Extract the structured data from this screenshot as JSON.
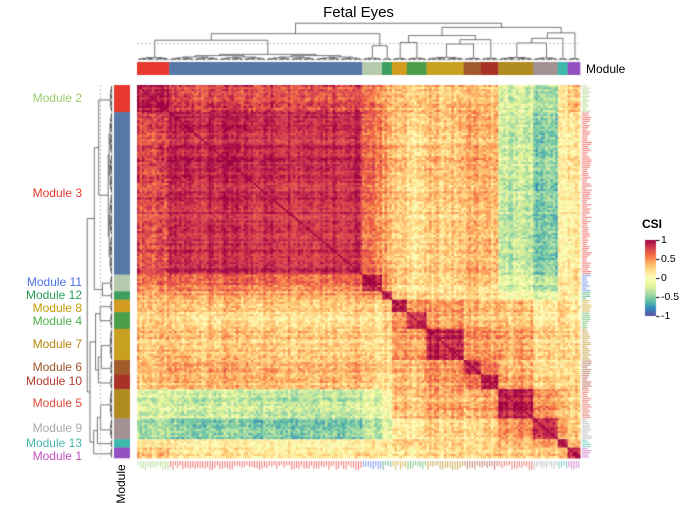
{
  "title": "Fetal Eyes",
  "annotation_label": "Module",
  "legend": {
    "title": "CSI",
    "ticks": [
      "1",
      "0.5",
      "0",
      "-0.5",
      "-1"
    ],
    "tick_values": [
      1,
      0.5,
      0,
      -0.5,
      -1
    ],
    "range": [
      1,
      -1
    ]
  },
  "chart_data": {
    "type": "heatmap",
    "title": "Fetal Eyes",
    "value_label": "CSI",
    "value_range": [
      -1,
      1
    ],
    "rows_equal_columns": true,
    "legend_position": "right",
    "colormap": "spectral-red-high-purple-low",
    "colormap_stops": [
      {
        "v": 1.0,
        "c": "#9e0142"
      },
      {
        "v": 0.8,
        "c": "#d53e4f"
      },
      {
        "v": 0.6,
        "c": "#f46d43"
      },
      {
        "v": 0.4,
        "c": "#fdae61"
      },
      {
        "v": 0.2,
        "c": "#fee08b"
      },
      {
        "v": 0.0,
        "c": "#ffffbf"
      },
      {
        "v": -0.2,
        "c": "#e6f598"
      },
      {
        "v": -0.4,
        "c": "#abdda4"
      },
      {
        "v": -0.6,
        "c": "#66c2a5"
      },
      {
        "v": -0.8,
        "c": "#3288bd"
      },
      {
        "v": -1.0,
        "c": "#5e4fa2"
      }
    ],
    "modules": [
      {
        "name": "Module 2",
        "label_color": "#9acd6b",
        "bar_color": "#e8392e",
        "size": 13
      },
      {
        "name": "Module 3",
        "label_color": "#e8392e",
        "bar_color": "#5878a8",
        "size": 78
      },
      {
        "name": "Module 11",
        "label_color": "#4a6fe3",
        "bar_color": "#b5c9ad",
        "size": 8
      },
      {
        "name": "Module 12",
        "label_color": "#2ca05a",
        "bar_color": "#3ba05f",
        "size": 4
      },
      {
        "name": "Module 8",
        "label_color": "#c49a02",
        "bar_color": "#d39c20",
        "size": 6
      },
      {
        "name": "Module 4",
        "label_color": "#4daf4a",
        "bar_color": "#4a9e4a",
        "size": 8
      },
      {
        "name": "Module 7",
        "label_color": "#b8860b",
        "bar_color": "#c8a020",
        "size": 15
      },
      {
        "name": "Module 6",
        "label_color": "#a0522d",
        "bar_color": "#a05a2c",
        "size": 7
      },
      {
        "name": "Module 10",
        "label_color": "#b03a2e",
        "bar_color": "#a93226",
        "size": 7
      },
      {
        "name": "Module 5",
        "label_color": "#e04a3a",
        "bar_color": "#b08c1e",
        "size": 14
      },
      {
        "name": "Module 9",
        "label_color": "#a8a8a8",
        "bar_color": "#a39193",
        "size": 10
      },
      {
        "name": "Module 13",
        "label_color": "#45b5aa",
        "bar_color": "#3cb8ac",
        "size": 4
      },
      {
        "name": "Module 1",
        "label_color": "#bf4fbf",
        "bar_color": "#9450c0",
        "size": 5
      }
    ],
    "module_block_csi": [
      [
        0.92,
        0.75,
        0.55,
        0.45,
        0.32,
        0.28,
        0.3,
        0.35,
        0.3,
        -0.25,
        -0.4,
        0.1,
        0.3
      ],
      [
        0.75,
        0.88,
        0.6,
        0.45,
        0.28,
        0.22,
        0.3,
        0.4,
        0.35,
        -0.3,
        -0.5,
        0.05,
        0.15
      ],
      [
        0.55,
        0.6,
        0.9,
        0.5,
        0.22,
        0.18,
        0.2,
        0.28,
        0.22,
        -0.2,
        -0.35,
        0.08,
        0.15
      ],
      [
        0.45,
        0.45,
        0.5,
        0.88,
        0.3,
        0.28,
        0.22,
        0.22,
        0.18,
        0.0,
        -0.15,
        0.12,
        0.1
      ],
      [
        0.32,
        0.28,
        0.22,
        0.3,
        0.88,
        0.5,
        0.45,
        0.35,
        0.3,
        0.3,
        0.1,
        0.2,
        0.15
      ],
      [
        0.28,
        0.22,
        0.18,
        0.28,
        0.5,
        0.88,
        0.45,
        0.35,
        0.3,
        0.3,
        0.15,
        0.25,
        0.15
      ],
      [
        0.3,
        0.3,
        0.2,
        0.22,
        0.45,
        0.45,
        0.88,
        0.5,
        0.45,
        0.4,
        0.25,
        0.2,
        0.2
      ],
      [
        0.35,
        0.4,
        0.28,
        0.22,
        0.35,
        0.35,
        0.5,
        0.88,
        0.55,
        0.35,
        0.2,
        0.15,
        0.2
      ],
      [
        0.3,
        0.35,
        0.22,
        0.18,
        0.3,
        0.3,
        0.45,
        0.55,
        0.88,
        0.4,
        0.25,
        0.15,
        0.2
      ],
      [
        -0.25,
        -0.3,
        -0.2,
        0.0,
        0.3,
        0.3,
        0.4,
        0.35,
        0.4,
        0.88,
        0.5,
        0.3,
        0.25
      ],
      [
        -0.4,
        -0.5,
        -0.35,
        -0.15,
        0.1,
        0.15,
        0.25,
        0.2,
        0.25,
        0.5,
        0.88,
        0.4,
        0.3
      ],
      [
        0.1,
        0.05,
        0.08,
        0.12,
        0.2,
        0.25,
        0.2,
        0.15,
        0.15,
        0.3,
        0.4,
        0.88,
        0.35
      ],
      [
        0.3,
        0.15,
        0.15,
        0.1,
        0.15,
        0.15,
        0.2,
        0.2,
        0.2,
        0.25,
        0.3,
        0.35,
        0.88
      ]
    ],
    "dendrogram": {
      "h": 1.0,
      "c": [
        {
          "h": 0.62,
          "c": [
            {
              "h": 0.38,
              "c": [
                0,
                1
              ]
            },
            {
              "h": 0.18,
              "c": [
                2,
                3
              ]
            }
          ]
        },
        {
          "h": 0.85,
          "c": [
            {
              "h": 0.55,
              "c": [
                {
                  "h": 0.3,
                  "c": [
                    4,
                    5
                  ]
                },
                {
                  "h": 0.4,
                  "c": [
                    {
                      "h": 0.24,
                      "c": [
                        6,
                        7
                      ]
                    },
                    8
                  ]
                }
              ]
            },
            {
              "h": 0.65,
              "c": [
                {
                  "h": 0.45,
                  "c": [
                    {
                      "h": 0.28,
                      "c": [
                        9,
                        10
                      ]
                    },
                    11
                  ]
                },
                12
              ]
            }
          ]
        }
      ]
    },
    "cut_line_height": 0.45
  }
}
